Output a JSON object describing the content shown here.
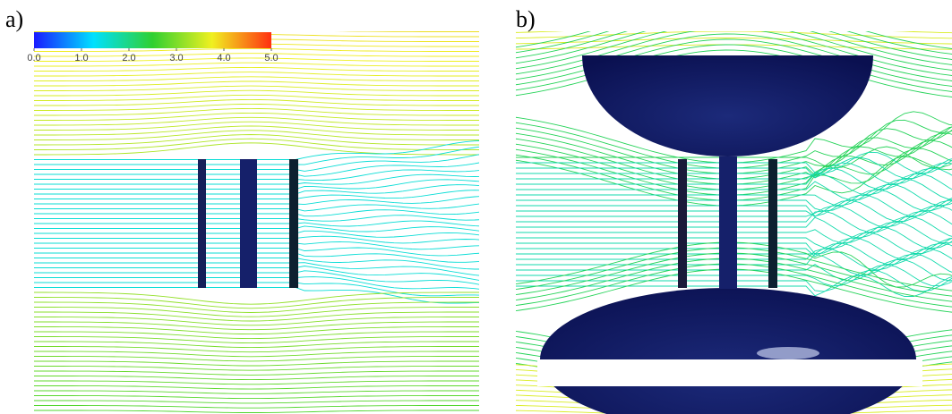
{
  "panels": [
    {
      "label": "a)"
    },
    {
      "label": "b)"
    }
  ],
  "colorbar": {
    "lim": [
      0,
      5
    ],
    "ticks": [
      {
        "value": 0,
        "label": "0.0"
      },
      {
        "value": 1,
        "label": "1.0"
      },
      {
        "value": 2,
        "label": "2.0"
      },
      {
        "value": 3,
        "label": "3.0"
      },
      {
        "value": 4,
        "label": "4.0"
      },
      {
        "value": 5,
        "label": "5.0"
      }
    ]
  }
}
